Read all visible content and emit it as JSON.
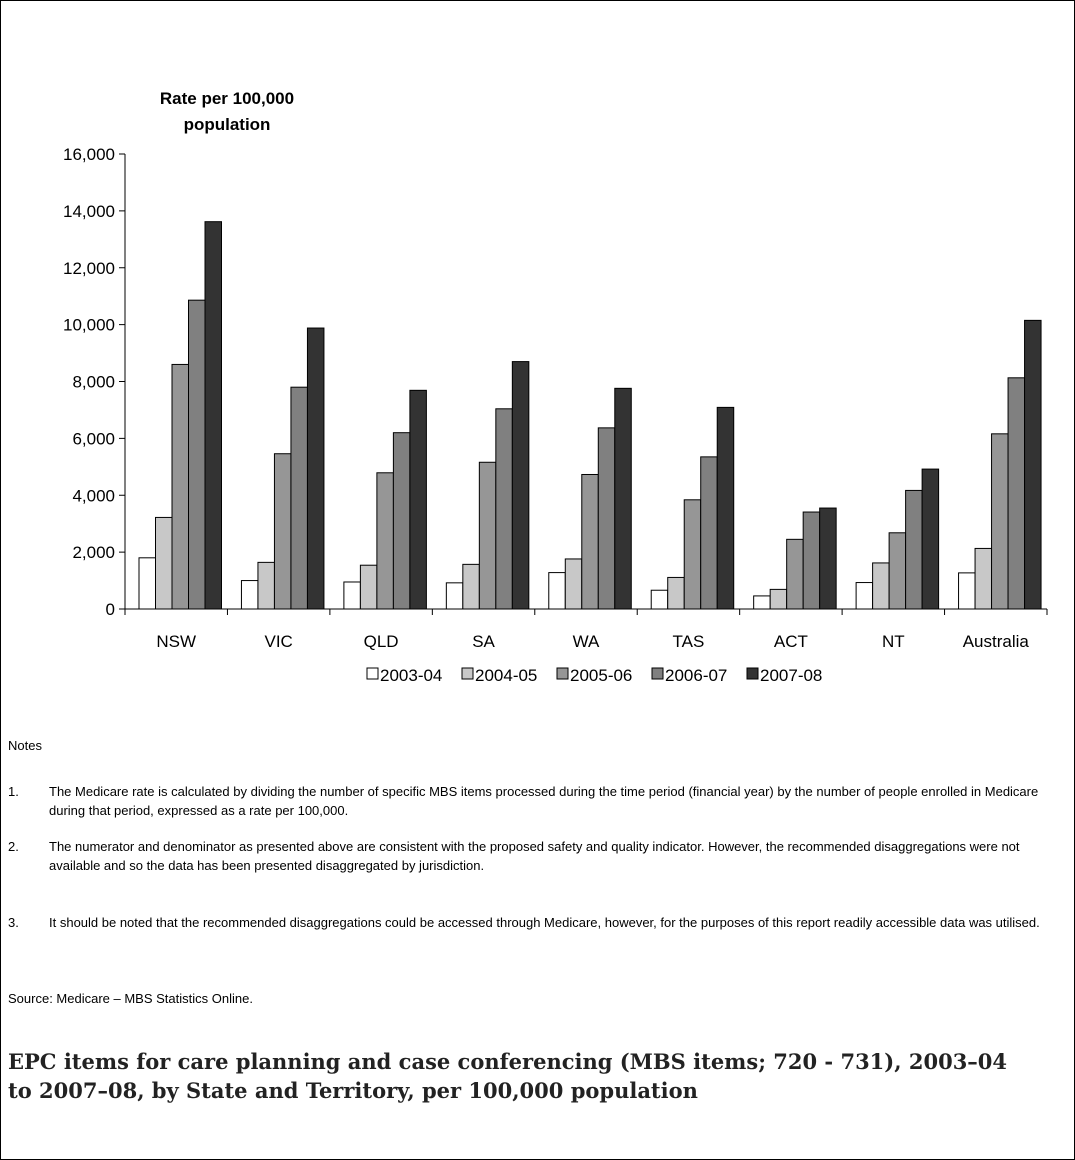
{
  "chart_data": {
    "type": "bar",
    "ylabel": "Rate per 100,000 population",
    "ylim": [
      0,
      16000
    ],
    "yticks": [
      0,
      2000,
      4000,
      6000,
      8000,
      10000,
      12000,
      14000,
      16000
    ],
    "ytick_labels": [
      "0",
      "2,000",
      "4,000",
      "6,000",
      "8,000",
      "10,000",
      "12,000",
      "14,000",
      "16,000"
    ],
    "categories": [
      "NSW",
      "VIC",
      "QLD",
      "SA",
      "WA",
      "TAS",
      "ACT",
      "NT",
      "Australia"
    ],
    "series": [
      {
        "name": "2003-04",
        "color": "#ffffff",
        "values": [
          1800,
          1000,
          950,
          920,
          1280,
          660,
          460,
          930,
          1270
        ]
      },
      {
        "name": "2004-05",
        "color": "#c8c8c8",
        "values": [
          3220,
          1640,
          1540,
          1570,
          1760,
          1110,
          690,
          1620,
          2130
        ]
      },
      {
        "name": "2005-06",
        "color": "#969696",
        "values": [
          8600,
          5460,
          4790,
          5160,
          4730,
          3840,
          2450,
          2680,
          6160
        ]
      },
      {
        "name": "2006-07",
        "color": "#808080",
        "values": [
          10860,
          7800,
          6200,
          7040,
          6370,
          5350,
          3410,
          4170,
          8130
        ]
      },
      {
        "name": "2007-08",
        "color": "#333333",
        "values": [
          13620,
          9880,
          7690,
          8700,
          7760,
          7090,
          3550,
          4920,
          10150
        ]
      }
    ],
    "legend_position": "bottom",
    "grid": false
  },
  "notes": {
    "heading": "Notes",
    "items": [
      {
        "num": "1.",
        "text": "The Medicare rate is calculated by dividing the number of specific MBS items processed during the time period (financial year) by the number of people enrolled in Medicare during that period, expressed as a rate per 100,000."
      },
      {
        "num": "2.",
        "text": "The numerator and denominator as presented above are consistent with the proposed safety and quality indicator. However, the recommended disaggregations were not available and so the data has been presented disaggregated by jurisdiction."
      },
      {
        "num": "3.",
        "text": "It should be noted that the recommended disaggregations could be accessed through Medicare, however, for the purposes of this report readily accessible data was utilised."
      }
    ],
    "source": "Source: Medicare – MBS Statistics Online."
  },
  "caption": "EPC items for care planning and case conferencing (MBS items; 720 - 731), 2003–04 to 2007–08, by State and Territory, per 100,000 population"
}
